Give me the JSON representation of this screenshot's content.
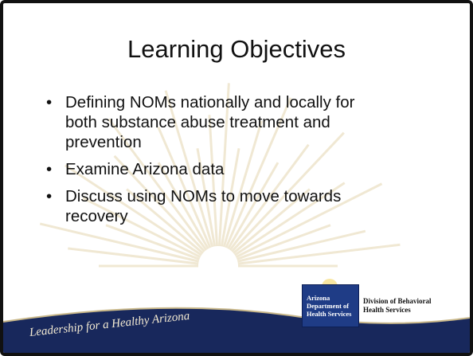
{
  "title": "Learning Objectives",
  "bullets": [
    "Defining NOMs nationally and locally for both substance abuse treatment and prevention",
    "Examine Arizona data",
    "Discuss using NOMs to move towards recovery"
  ],
  "tagline": "Leadership for a Healthy Arizona",
  "logo": {
    "lines": [
      "Arizona",
      "Department of",
      "Health Services"
    ]
  },
  "division": {
    "lines": [
      "Division of Behavioral",
      "Health Services"
    ]
  }
}
